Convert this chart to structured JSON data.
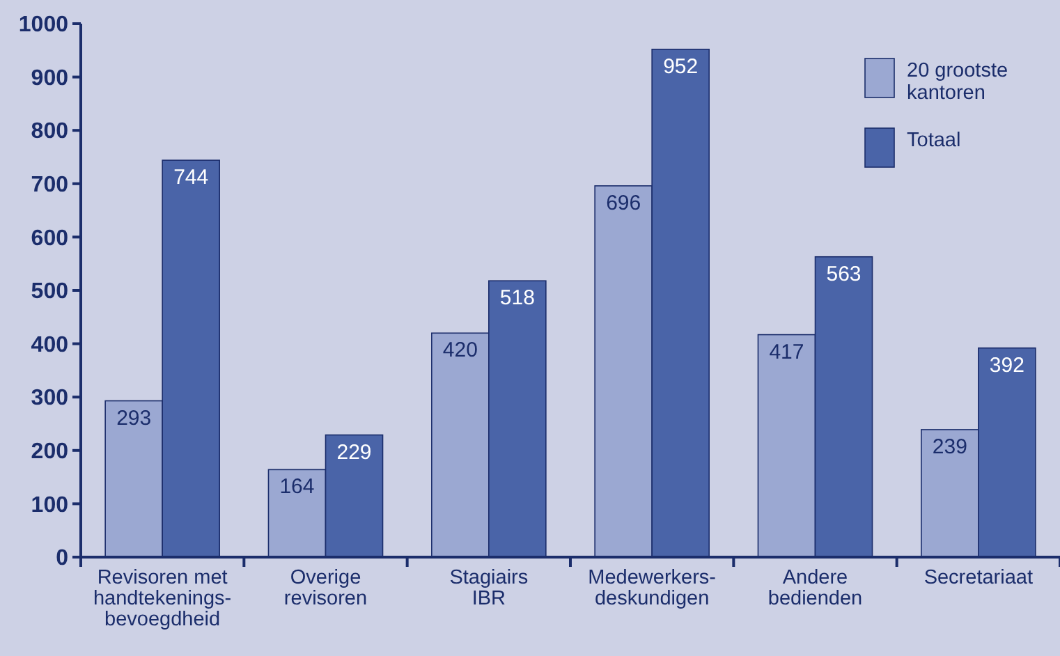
{
  "chart_data": {
    "type": "bar",
    "categories": [
      "Revisoren met\nhandtekenings-\nbevoegdheid",
      "Overige\nrevisoren",
      "Stagiairs\nIBR",
      "Medewerkers-\ndeskundigen",
      "Andere\nbedienden",
      "Secretariaat"
    ],
    "series": [
      {
        "name": "20 grootste\nkantoren",
        "color": "#9ba8d2",
        "values": [
          293,
          164,
          420,
          696,
          417,
          239
        ]
      },
      {
        "name": "Totaal",
        "color": "#4a64a8",
        "values": [
          744,
          229,
          518,
          952,
          563,
          392
        ]
      }
    ],
    "ylim": [
      0,
      1000
    ],
    "yticks": [
      0,
      100,
      200,
      300,
      400,
      500,
      600,
      700,
      800,
      900,
      1000
    ],
    "data_labels": true,
    "legend": "top right",
    "grid": false
  }
}
